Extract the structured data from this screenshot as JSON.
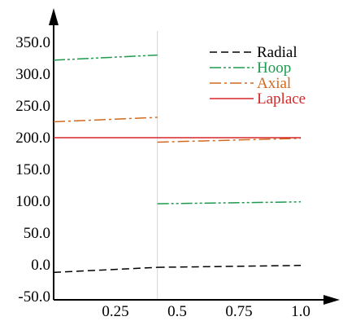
{
  "chart_data": {
    "type": "line",
    "title": "",
    "xlabel": "",
    "ylabel": "",
    "xlim": [
      0,
      1.1
    ],
    "ylim": [
      -50,
      380
    ],
    "x_ticks": [
      {
        "value": 0.25,
        "label": "0.25"
      },
      {
        "value": 0.5,
        "label": "0.5"
      },
      {
        "value": 0.75,
        "label": "0.75"
      },
      {
        "value": 1.0,
        "label": "1.0"
      }
    ],
    "y_ticks": [
      {
        "value": -50,
        "label": "-50.0"
      },
      {
        "value": 0,
        "label": "0.0"
      },
      {
        "value": 50,
        "label": "50.0"
      },
      {
        "value": 100,
        "label": "100.0"
      },
      {
        "value": 150,
        "label": "150.0"
      },
      {
        "value": 200,
        "label": "200.0"
      },
      {
        "value": 250,
        "label": "250.0"
      },
      {
        "value": 300,
        "label": "300.0"
      },
      {
        "value": 350,
        "label": "350.0"
      }
    ],
    "interface_x": 0.42,
    "grid": false,
    "legend_position": "top-right",
    "series": [
      {
        "name": "Radial",
        "color": "#000000",
        "dash": "dashed",
        "segments": [
          [
            [
              0,
              -12
            ],
            [
              0.42,
              -4
            ]
          ],
          [
            [
              0.42,
              -4
            ],
            [
              1.0,
              -1
            ]
          ]
        ]
      },
      {
        "name": "Hoop",
        "color": "#1e9a4e",
        "dash": "dash-dot-dot",
        "segments": [
          [
            [
              0,
              322
            ],
            [
              0.42,
              330
            ]
          ],
          [
            [
              0.42,
              96
            ],
            [
              1.0,
              99
            ]
          ]
        ]
      },
      {
        "name": "Axial",
        "color": "#d2691e",
        "dash": "dash-dot",
        "segments": [
          [
            [
              0,
              225
            ],
            [
              0.42,
              232
            ]
          ],
          [
            [
              0.42,
              193
            ],
            [
              1.0,
              199
            ]
          ]
        ]
      },
      {
        "name": "Laplace",
        "color": "#d62728",
        "dash": "solid",
        "segments": [
          [
            [
              0,
              200
            ],
            [
              1.0,
              200
            ]
          ]
        ]
      }
    ]
  }
}
